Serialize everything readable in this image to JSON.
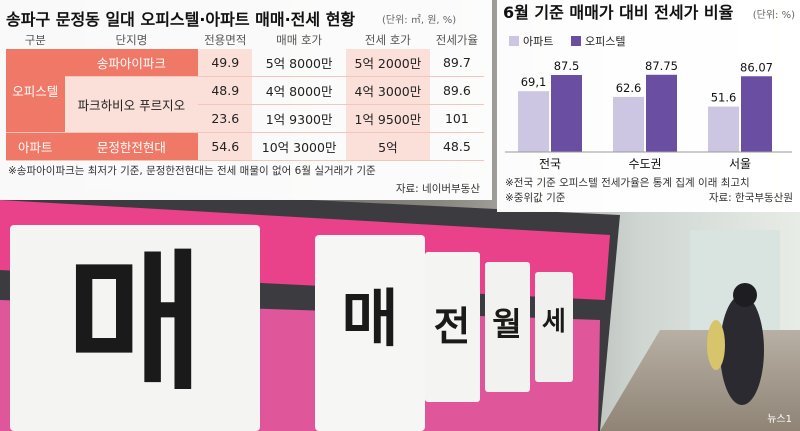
{
  "table": {
    "title": "송파구 문정동 일대 오피스텔·아파트 매매·전세 현황",
    "unit": "(단위: ㎡, 원, %)",
    "headers": [
      "구분",
      "단지명",
      "전용면적",
      "매매 호가",
      "전세 호가",
      "전세가율"
    ],
    "groups": [
      {
        "label": "오피스텔",
        "complexes": [
          {
            "name": "송파아이파크",
            "rows": [
              [
                "49.9",
                "5억 8000만",
                "5억 2000만",
                "89.7"
              ]
            ]
          },
          {
            "name": "파크하비오 푸르지오",
            "rows": [
              [
                "48.9",
                "4억 8000만",
                "4억 3000만",
                "89.6"
              ],
              [
                "23.6",
                "1억 9300만",
                "1억 9500만",
                "101"
              ]
            ]
          }
        ]
      },
      {
        "label": "아파트",
        "complexes": [
          {
            "name": "문정한전현대",
            "rows": [
              [
                "54.6",
                "10억 3000만",
                "5억",
                "48.5"
              ]
            ]
          }
        ]
      }
    ],
    "note": "※송파아이파크는 최저가 기준, 문정한전현대는 전세 매물이 없어 6월 실거래가 기준",
    "source": "자료: 네이버부동산"
  },
  "chart_data": {
    "type": "bar",
    "title": "6월 기준 매매가 대비 전세가 비율",
    "unit": "(단위: %)",
    "categories": [
      "전국",
      "수도권",
      "서울"
    ],
    "series": [
      {
        "name": "아파트",
        "color": "#cdc6e2",
        "values": [
          69.1,
          62.6,
          51.6
        ],
        "value_labels": [
          "69,1",
          "62.6",
          "51.6"
        ]
      },
      {
        "name": "오피스텔",
        "color": "#6a4ea2",
        "values": [
          87.5,
          87.75,
          86.07
        ]
      }
    ],
    "notes": [
      "※전국 기준 오피스텔 전세가율은 통계 집계 이래 최고치",
      "※중위값 기준"
    ],
    "source": "자료: 한국부동산원"
  },
  "photo": {
    "sign": [
      "매",
      "매",
      "전",
      "월",
      "세"
    ],
    "credit": "뉴스1"
  }
}
